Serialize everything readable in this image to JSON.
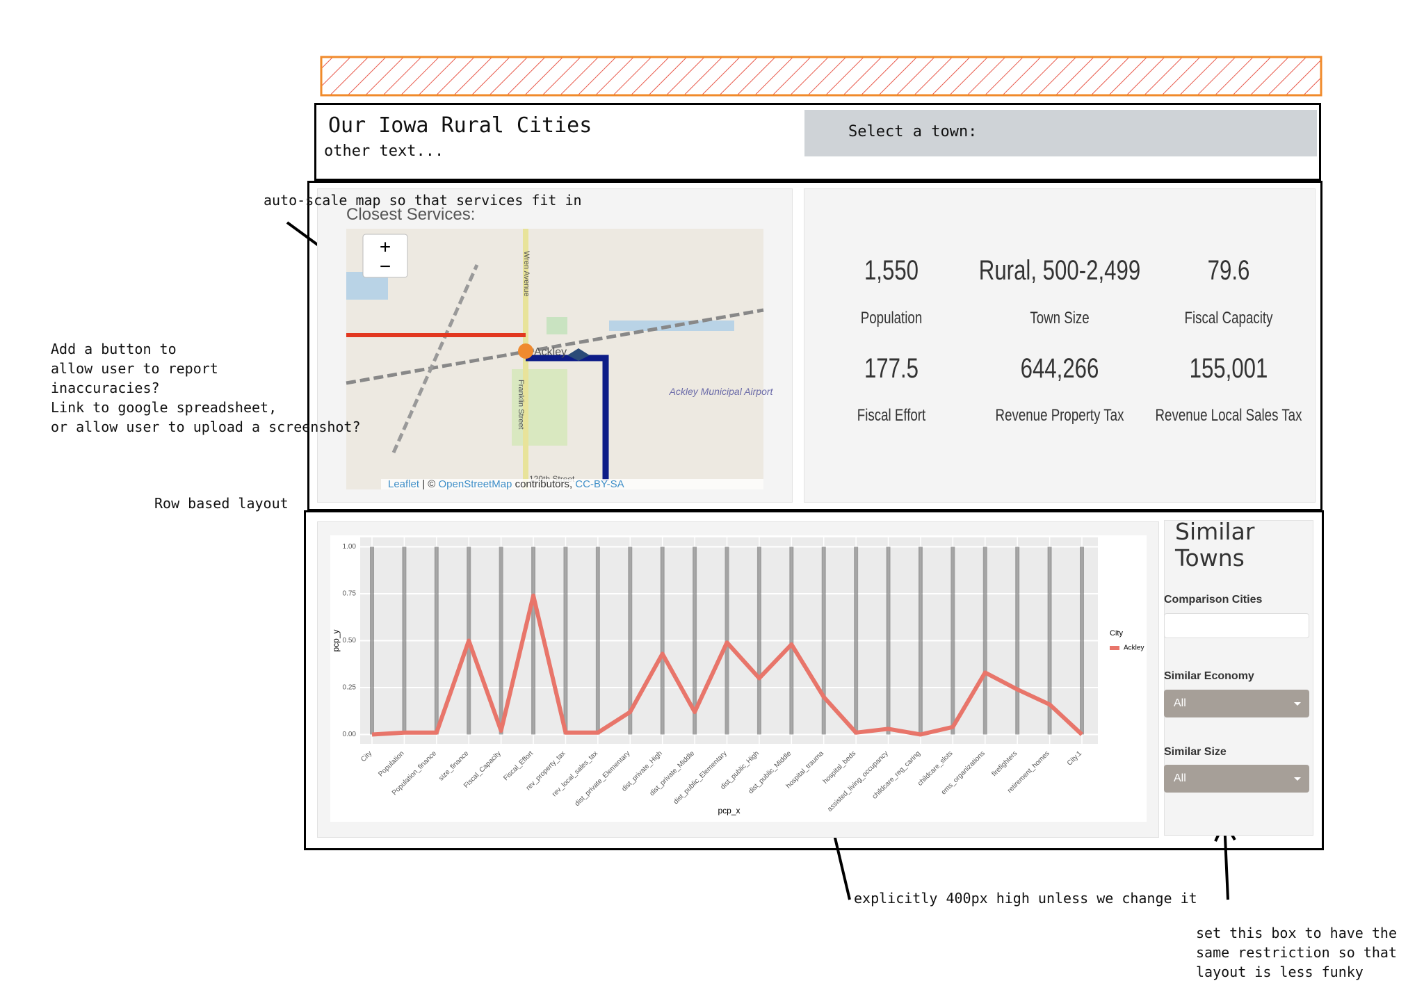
{
  "annotations": {
    "map_note": "auto-scale map so that services fit in",
    "report_note": [
      "Add a button to",
      "allow user to report",
      "inaccuracies?",
      "Link to google spreadsheet,",
      "or allow user to upload a screenshot?"
    ],
    "row_note": "Row based layout",
    "height_note": "explicitly 400px high unless we change it",
    "sidebar_note": [
      "set this box to have the",
      "same restriction so that",
      "layout is less funky"
    ]
  },
  "header": {
    "title": "Our Iowa Rural Cities",
    "subtitle": "other text...",
    "select_label": "Select a town:"
  },
  "map": {
    "title": "Closest Services:",
    "zoom_in": "+",
    "zoom_out": "−",
    "street": "Wren Avenue",
    "town": "Ackley",
    "street2": "Franklin Street",
    "airport": "Ackley Municipal Airport",
    "road": "120th Street",
    "attribution": [
      "Leaflet",
      " | © ",
      "OpenStreetMap",
      " contributors, ",
      "CC-BY-SA"
    ]
  },
  "stats": [
    {
      "value": "1,550",
      "label": "Population"
    },
    {
      "value": "Rural, 500-2,499",
      "label": "Town Size"
    },
    {
      "value": "79.6",
      "label": "Fiscal Capacity"
    },
    {
      "value": "177.5",
      "label": "Fiscal Effort"
    },
    {
      "value": "644,266",
      "label": "Revenue Property Tax"
    },
    {
      "value": "155,001",
      "label": "Revenue Local Sales Tax"
    }
  ],
  "chart_data": {
    "type": "line",
    "x_label": "pcp_x",
    "y_label": "pcp_y",
    "legend_title": "City",
    "categories": [
      "City",
      "Population",
      "Population_finance",
      "size_finance",
      "Fiscal_Capacity",
      "Fiscal_Effort",
      "rev_property_tax",
      "rev_local_sales_tax",
      "dist_private_Elementary",
      "dist_private_High",
      "dist_private_Middle",
      "dist_public_Elementary",
      "dist_public_High",
      "dist_public_Middle",
      "hospital_trauma",
      "hospital_beds",
      "assisted_living_occupancy",
      "childcare_reg_caring",
      "childcare_slots",
      "ems_organizations",
      "firefighters",
      "retirement_homes",
      "City.1"
    ],
    "series": [
      {
        "name": "Ackley",
        "color": "#e8756a",
        "values": [
          0,
          0.01,
          0.01,
          0.5,
          0.02,
          0.74,
          0.01,
          0.01,
          0.12,
          0.43,
          0.12,
          0.49,
          0.3,
          0.48,
          0.2,
          0.01,
          0.03,
          0,
          0.04,
          0.33,
          0.24,
          0.16,
          0
        ]
      }
    ],
    "ylim": [
      -0.05,
      1.05
    ],
    "yticks": [
      {
        "value": 0,
        "label": "0.00"
      },
      {
        "value": 0.25,
        "label": "0.25"
      },
      {
        "value": 0.5,
        "label": "0.50"
      },
      {
        "value": 0.75,
        "label": "0.75"
      },
      {
        "value": 1,
        "label": "1.00"
      }
    ]
  },
  "sidebar": {
    "title": "Similar Towns",
    "comparison_label": "Comparison Cities",
    "economy_label": "Similar Economy",
    "economy_value": "All",
    "size_label": "Similar Size",
    "size_value": "All"
  }
}
